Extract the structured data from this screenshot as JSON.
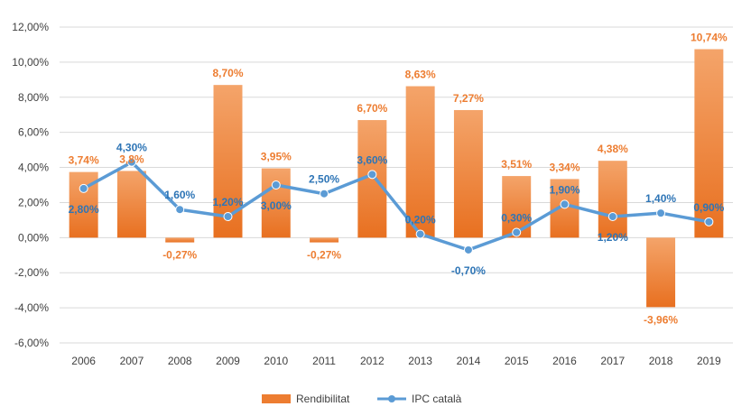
{
  "chart_data": {
    "type": "bar",
    "categories": [
      "2006",
      "2007",
      "2008",
      "2009",
      "2010",
      "2011",
      "2012",
      "2013",
      "2014",
      "2015",
      "2016",
      "2017",
      "2018",
      "2019"
    ],
    "series": [
      {
        "name": "Rendibilitat",
        "type": "bar",
        "color": "#ED7D31",
        "values": [
          3.74,
          3.8,
          -0.27,
          8.7,
          3.95,
          -0.27,
          6.7,
          8.63,
          7.27,
          3.51,
          3.34,
          4.38,
          -3.96,
          10.74
        ],
        "labels": [
          "3,74%",
          "3,8%",
          "-0,27%",
          "8,70%",
          "3,95%",
          "-0,27%",
          "6,70%",
          "8,63%",
          "7,27%",
          "3,51%",
          "3,34%",
          "4,38%",
          "-3,96%",
          "10,74%"
        ]
      },
      {
        "name": "IPC català",
        "type": "line",
        "color": "#5B9BD5",
        "values": [
          2.8,
          4.3,
          1.6,
          1.2,
          3.0,
          2.5,
          3.6,
          0.2,
          -0.7,
          0.3,
          1.9,
          1.2,
          1.4,
          0.9
        ],
        "labels": [
          "2,80%",
          "4,30%",
          "1,60%",
          "1,20%",
          "3,00%",
          "2,50%",
          "3,60%",
          "0,20%",
          "-0,70%",
          "0,30%",
          "1,90%",
          "1,20%",
          "1,40%",
          "0,90%"
        ]
      }
    ],
    "ylim": [
      -6,
      12
    ],
    "yticks": [
      12,
      10,
      8,
      6,
      4,
      2,
      0,
      -2,
      -4,
      -6
    ],
    "ytick_labels": [
      "12,00%",
      "10,00%",
      "8,00%",
      "6,00%",
      "4,00%",
      "2,00%",
      "0,00%",
      "-2,00%",
      "-4,00%",
      "-6,00%"
    ],
    "grid": true,
    "legend": "bottom",
    "title": "",
    "xlabel": "",
    "ylabel": ""
  }
}
